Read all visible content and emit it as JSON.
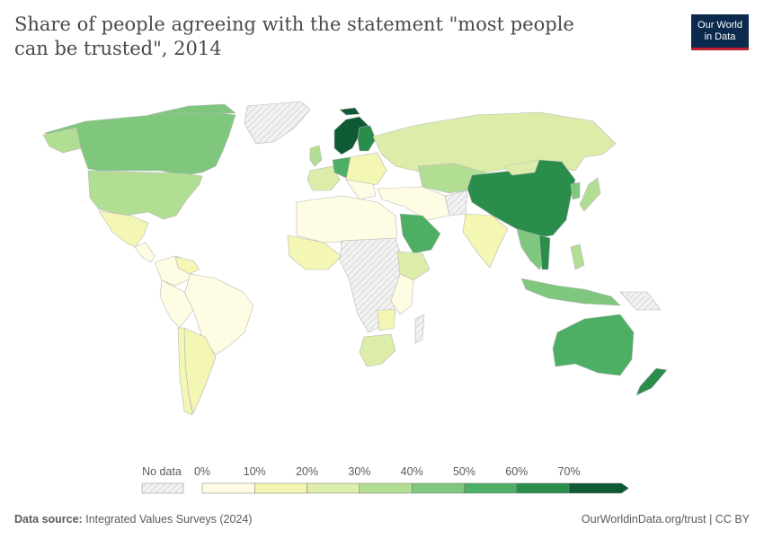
{
  "title": "Share of people agreeing with the statement \"most people can be trusted\", 2014",
  "logo": {
    "line1": "Our World",
    "line2": "in Data",
    "bg": "#0c2a4d",
    "accent": "#c11f2f"
  },
  "legend": {
    "no_data_label": "No data",
    "ticks": [
      "0%",
      "10%",
      "20%",
      "30%",
      "40%",
      "50%",
      "60%",
      "70%"
    ],
    "colors": [
      "#fefde4",
      "#f4f6b3",
      "#dcedaa",
      "#b2de93",
      "#7ec77d",
      "#4daf64",
      "#2a8d4b",
      "#0d5a34"
    ]
  },
  "footer": {
    "source_label": "Data source:",
    "source_text": "Integrated Values Surveys (2024)",
    "link": "OurWorldinData.org/trust | CC BY"
  }
}
